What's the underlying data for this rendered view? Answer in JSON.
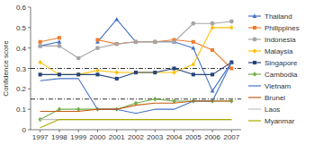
{
  "chart_data": {
    "type": "line",
    "ylabel": "Confidence score",
    "x": [
      1997,
      1998,
      1999,
      2000,
      2001,
      2002,
      2003,
      2004,
      2005,
      2006,
      2007
    ],
    "series": [
      {
        "name": "Thailand",
        "color": "#4472C4",
        "marker": "triangle",
        "values": [
          0.41,
          0.43,
          null,
          0.43,
          0.54,
          0.43,
          0.43,
          0.43,
          0.4,
          0.19,
          0.33
        ]
      },
      {
        "name": "Philippines",
        "color": "#ED7D31",
        "marker": "square",
        "values": [
          0.43,
          0.45,
          null,
          0.44,
          0.42,
          0.43,
          0.43,
          0.44,
          0.43,
          0.39,
          0.3
        ]
      },
      {
        "name": "Indonesia",
        "color": "#A5A5A5",
        "marker": "circle",
        "values": [
          0.41,
          0.41,
          0.35,
          0.4,
          0.42,
          0.43,
          0.43,
          0.43,
          0.52,
          0.52,
          0.53
        ]
      },
      {
        "name": "Malaysia",
        "color": "#FFC000",
        "marker": "diamond",
        "values": [
          0.33,
          0.27,
          0.27,
          0.29,
          0.28,
          0.28,
          0.28,
          0.28,
          0.32,
          0.5,
          0.5
        ]
      },
      {
        "name": "Singapore",
        "color": "#264478",
        "marker": "square",
        "values": [
          0.27,
          0.27,
          0.27,
          0.27,
          0.25,
          0.28,
          0.28,
          0.3,
          0.27,
          0.27,
          0.33
        ]
      },
      {
        "name": "Cambodia",
        "color": "#70AD47",
        "marker": "diamond",
        "values": [
          0.05,
          0.1,
          0.1,
          0.1,
          0.1,
          0.13,
          0.15,
          0.14,
          0.14,
          0.14,
          0.14
        ]
      },
      {
        "name": "Vietnam",
        "color": "#4472C4",
        "values": [
          0.24,
          0.25,
          0.25,
          0.1,
          0.1,
          0.08,
          0.1,
          0.1,
          0.14,
          0.14,
          0.33
        ]
      },
      {
        "name": "Brunei",
        "color": "#C55A11",
        "values": [
          0.09,
          0.09,
          0.09,
          0.1,
          0.1,
          0.12,
          0.13,
          0.13,
          0.14,
          0.14,
          0.14
        ]
      },
      {
        "name": "Laos",
        "color": "#BFBFBF",
        "values": [
          0.05,
          0.05,
          0.05,
          0.05,
          0.05,
          0.05,
          0.05,
          0.05,
          0.05,
          0.05,
          0.05
        ]
      },
      {
        "name": "Myanmar",
        "color": "#AAAA00",
        "values": [
          0.01,
          0.05,
          0.05,
          0.05,
          0.05,
          0.05,
          0.05,
          0.05,
          0.05,
          0.05,
          0.05
        ]
      }
    ],
    "hlines": [
      0.3,
      0.15
    ],
    "xlim": [
      1996.5,
      2007.5
    ],
    "xticks": [
      1997,
      1998,
      1999,
      2000,
      2001,
      2002,
      2003,
      2004,
      2005,
      2006,
      2007
    ],
    "ylim": [
      0,
      0.6
    ],
    "yticks": [
      0,
      0.1,
      0.2,
      0.3,
      0.4,
      0.5,
      0.6
    ],
    "grid": false,
    "legend": "right"
  }
}
